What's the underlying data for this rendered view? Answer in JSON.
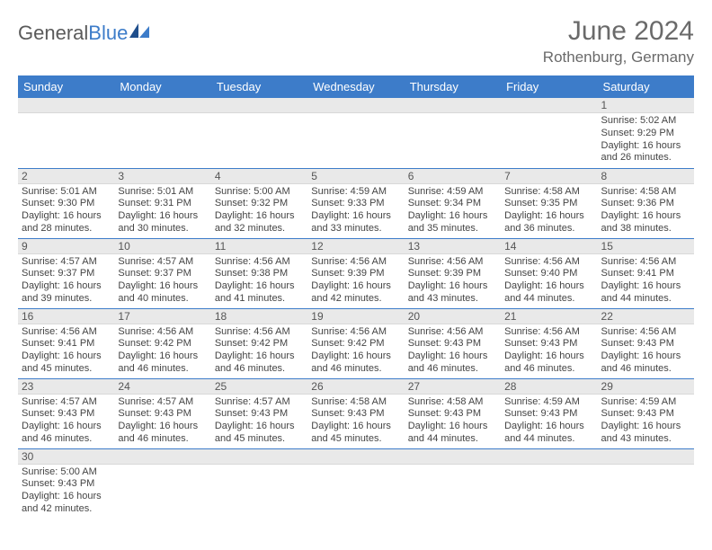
{
  "logo": {
    "general": "General",
    "blue": "Blue"
  },
  "header": {
    "title": "June 2024",
    "location": "Rothenburg, Germany"
  },
  "colors": {
    "header_bg": "#3d7cc9",
    "header_fg": "#ffffff",
    "daynum_bg": "#e9e9e9",
    "border": "#3d7cc9"
  },
  "weekdays": [
    "Sunday",
    "Monday",
    "Tuesday",
    "Wednesday",
    "Thursday",
    "Friday",
    "Saturday"
  ],
  "days": {
    "1": {
      "sunrise": "5:02 AM",
      "sunset": "9:29 PM",
      "daylight": "16 hours and 26 minutes."
    },
    "2": {
      "sunrise": "5:01 AM",
      "sunset": "9:30 PM",
      "daylight": "16 hours and 28 minutes."
    },
    "3": {
      "sunrise": "5:01 AM",
      "sunset": "9:31 PM",
      "daylight": "16 hours and 30 minutes."
    },
    "4": {
      "sunrise": "5:00 AM",
      "sunset": "9:32 PM",
      "daylight": "16 hours and 32 minutes."
    },
    "5": {
      "sunrise": "4:59 AM",
      "sunset": "9:33 PM",
      "daylight": "16 hours and 33 minutes."
    },
    "6": {
      "sunrise": "4:59 AM",
      "sunset": "9:34 PM",
      "daylight": "16 hours and 35 minutes."
    },
    "7": {
      "sunrise": "4:58 AM",
      "sunset": "9:35 PM",
      "daylight": "16 hours and 36 minutes."
    },
    "8": {
      "sunrise": "4:58 AM",
      "sunset": "9:36 PM",
      "daylight": "16 hours and 38 minutes."
    },
    "9": {
      "sunrise": "4:57 AM",
      "sunset": "9:37 PM",
      "daylight": "16 hours and 39 minutes."
    },
    "10": {
      "sunrise": "4:57 AM",
      "sunset": "9:37 PM",
      "daylight": "16 hours and 40 minutes."
    },
    "11": {
      "sunrise": "4:56 AM",
      "sunset": "9:38 PM",
      "daylight": "16 hours and 41 minutes."
    },
    "12": {
      "sunrise": "4:56 AM",
      "sunset": "9:39 PM",
      "daylight": "16 hours and 42 minutes."
    },
    "13": {
      "sunrise": "4:56 AM",
      "sunset": "9:39 PM",
      "daylight": "16 hours and 43 minutes."
    },
    "14": {
      "sunrise": "4:56 AM",
      "sunset": "9:40 PM",
      "daylight": "16 hours and 44 minutes."
    },
    "15": {
      "sunrise": "4:56 AM",
      "sunset": "9:41 PM",
      "daylight": "16 hours and 44 minutes."
    },
    "16": {
      "sunrise": "4:56 AM",
      "sunset": "9:41 PM",
      "daylight": "16 hours and 45 minutes."
    },
    "17": {
      "sunrise": "4:56 AM",
      "sunset": "9:42 PM",
      "daylight": "16 hours and 46 minutes."
    },
    "18": {
      "sunrise": "4:56 AM",
      "sunset": "9:42 PM",
      "daylight": "16 hours and 46 minutes."
    },
    "19": {
      "sunrise": "4:56 AM",
      "sunset": "9:42 PM",
      "daylight": "16 hours and 46 minutes."
    },
    "20": {
      "sunrise": "4:56 AM",
      "sunset": "9:43 PM",
      "daylight": "16 hours and 46 minutes."
    },
    "21": {
      "sunrise": "4:56 AM",
      "sunset": "9:43 PM",
      "daylight": "16 hours and 46 minutes."
    },
    "22": {
      "sunrise": "4:56 AM",
      "sunset": "9:43 PM",
      "daylight": "16 hours and 46 minutes."
    },
    "23": {
      "sunrise": "4:57 AM",
      "sunset": "9:43 PM",
      "daylight": "16 hours and 46 minutes."
    },
    "24": {
      "sunrise": "4:57 AM",
      "sunset": "9:43 PM",
      "daylight": "16 hours and 46 minutes."
    },
    "25": {
      "sunrise": "4:57 AM",
      "sunset": "9:43 PM",
      "daylight": "16 hours and 45 minutes."
    },
    "26": {
      "sunrise": "4:58 AM",
      "sunset": "9:43 PM",
      "daylight": "16 hours and 45 minutes."
    },
    "27": {
      "sunrise": "4:58 AM",
      "sunset": "9:43 PM",
      "daylight": "16 hours and 44 minutes."
    },
    "28": {
      "sunrise": "4:59 AM",
      "sunset": "9:43 PM",
      "daylight": "16 hours and 44 minutes."
    },
    "29": {
      "sunrise": "4:59 AM",
      "sunset": "9:43 PM",
      "daylight": "16 hours and 43 minutes."
    },
    "30": {
      "sunrise": "5:00 AM",
      "sunset": "9:43 PM",
      "daylight": "16 hours and 42 minutes."
    }
  },
  "labels": {
    "sunrise": "Sunrise: ",
    "sunset": "Sunset: ",
    "daylight": "Daylight: "
  },
  "grid": [
    [
      null,
      null,
      null,
      null,
      null,
      null,
      "1"
    ],
    [
      "2",
      "3",
      "4",
      "5",
      "6",
      "7",
      "8"
    ],
    [
      "9",
      "10",
      "11",
      "12",
      "13",
      "14",
      "15"
    ],
    [
      "16",
      "17",
      "18",
      "19",
      "20",
      "21",
      "22"
    ],
    [
      "23",
      "24",
      "25",
      "26",
      "27",
      "28",
      "29"
    ],
    [
      "30",
      null,
      null,
      null,
      null,
      null,
      null
    ]
  ]
}
